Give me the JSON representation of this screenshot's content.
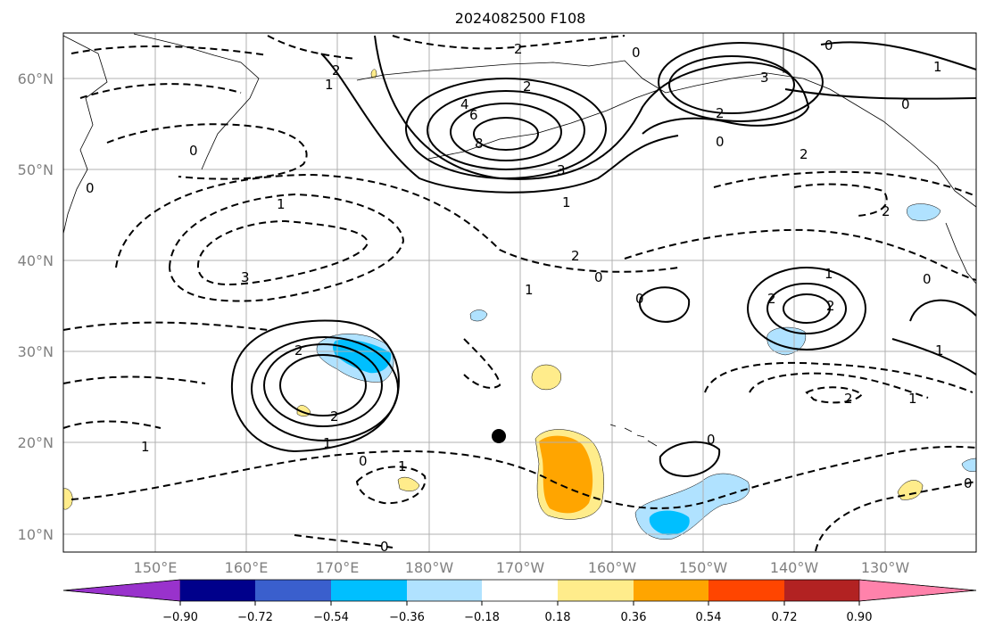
{
  "title": "2024082500 F108",
  "lat_labels": [
    "10°N",
    "20°N",
    "30°N",
    "40°N",
    "50°N",
    "60°N"
  ],
  "lon_labels": [
    "150°E",
    "160°E",
    "170°E",
    "180°W",
    "170°W",
    "160°W",
    "150°W",
    "140°W",
    "130°W"
  ],
  "colorbar": {
    "ticks": [
      "−0.90",
      "−0.72",
      "−0.54",
      "−0.36",
      "−0.18",
      "0.18",
      "0.36",
      "0.54",
      "0.72",
      "0.90"
    ],
    "colors": [
      "#9932cc",
      "#00008b",
      "#3a5fcd",
      "#00bfff",
      "#b0e2ff",
      "#ffffff",
      "#ffec8b",
      "#ffa500",
      "#ff4500",
      "#b22222",
      "#ff82ab"
    ]
  },
  "contour_labels": [
    {
      "id": "l1",
      "text": "2"
    },
    {
      "id": "l2",
      "text": "2"
    },
    {
      "id": "l3",
      "text": "1"
    },
    {
      "id": "l4",
      "text": "4"
    },
    {
      "id": "l5",
      "text": "6"
    },
    {
      "id": "l6",
      "text": "8"
    },
    {
      "id": "l7",
      "text": "3"
    },
    {
      "id": "l8",
      "text": "2"
    },
    {
      "id": "l9",
      "text": "0"
    },
    {
      "id": "l10",
      "text": "0"
    },
    {
      "id": "l11",
      "text": "2"
    },
    {
      "id": "l12",
      "text": "3"
    },
    {
      "id": "l13",
      "text": "1"
    },
    {
      "id": "l14",
      "text": "0"
    },
    {
      "id": "l15",
      "text": "2"
    },
    {
      "id": "l16",
      "text": "0"
    },
    {
      "id": "l17",
      "text": "2"
    },
    {
      "id": "l18",
      "text": "3"
    },
    {
      "id": "l19",
      "text": "1"
    },
    {
      "id": "l20",
      "text": "2"
    },
    {
      "id": "l21",
      "text": "1"
    },
    {
      "id": "l22",
      "text": "0"
    },
    {
      "id": "l23",
      "text": "0"
    },
    {
      "id": "l24",
      "text": "1"
    },
    {
      "id": "l25",
      "text": "2"
    },
    {
      "id": "l26",
      "text": "2"
    },
    {
      "id": "l27",
      "text": "1"
    },
    {
      "id": "l28",
      "text": "0"
    },
    {
      "id": "l29",
      "text": "1"
    },
    {
      "id": "l30",
      "text": "0"
    },
    {
      "id": "l31",
      "text": "2"
    },
    {
      "id": "l32",
      "text": "1"
    },
    {
      "id": "l33",
      "text": "0"
    },
    {
      "id": "l34",
      "text": "1"
    },
    {
      "id": "l35",
      "text": "0"
    },
    {
      "id": "l36",
      "text": "0"
    },
    {
      "id": "l37",
      "text": "2"
    },
    {
      "id": "l38",
      "text": "1"
    },
    {
      "id": "l39",
      "text": "0"
    },
    {
      "id": "l40",
      "text": "0"
    },
    {
      "id": "l41",
      "text": "2"
    },
    {
      "id": "l42",
      "text": "1"
    }
  ]
}
